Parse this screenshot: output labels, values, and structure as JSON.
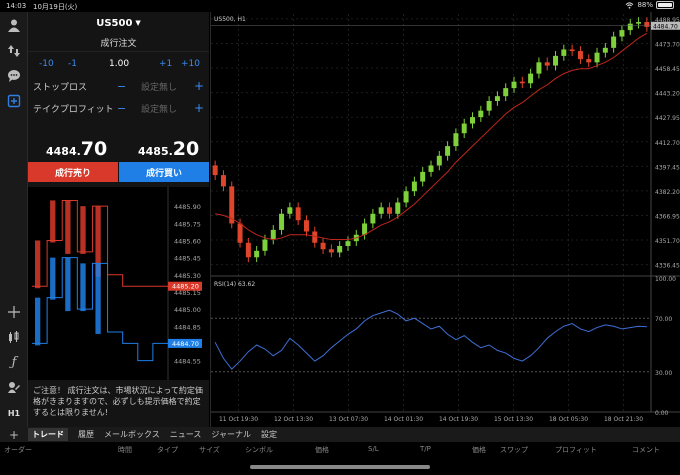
{
  "status": {
    "time": "14:03",
    "date": "10月19日(火)",
    "battery": "88%",
    "battery_level": 0.88
  },
  "toolbar": {
    "icons": [
      "account-icon",
      "transfer-icon",
      "chat-icon",
      "new-order-icon",
      "crosshair-icon",
      "indicator-icon",
      "function-icon",
      "draw-icon"
    ],
    "timeframe": "H1"
  },
  "order": {
    "symbol": "US500",
    "type": "成行注文",
    "lots": {
      "minus10": "-10",
      "minus1": "-1",
      "value": "1.00",
      "plus1": "+1",
      "plus10": "+10"
    },
    "stop_loss": {
      "label": "ストップロス",
      "value": "設定無し"
    },
    "take_profit": {
      "label": "テイクプロフィット",
      "value": "設定無し"
    },
    "sell_price": {
      "prefix": "4484.",
      "suffix": "70"
    },
    "buy_price": {
      "prefix": "4485.",
      "suffix": "20"
    },
    "sell_label": "成行売り",
    "buy_label": "成行買い"
  },
  "tick_chart": {
    "ticks": [
      "4485.90",
      "4485.75",
      "4485.60",
      "4485.45",
      "4485.30",
      "4485.15",
      "4485.00",
      "4484.85",
      "4484.70",
      "4484.55"
    ],
    "ask_label": "4485.20",
    "bid_label": "4484.70",
    "ask_color": "#d8392b",
    "bid_color": "#1f7fe6"
  },
  "notice": "ご注意！ 成行注文は、市場状況によって約定価格がきまりますので、必ずしも提示価格で約定するとは限りません!",
  "chart": {
    "title": "US500, H1",
    "price_ticks": [
      "4488.95",
      "4473.70",
      "4458.45",
      "4443.20",
      "4427.95",
      "4412.70",
      "4397.45",
      "4382.20",
      "4366.95",
      "4351.70",
      "4336.45"
    ],
    "current_label": "4484.70",
    "rsi_title": "RSI(14) 63.62",
    "rsi_ticks": [
      "100.00",
      "70.00",
      "30.00",
      "0.00"
    ],
    "time_ticks": [
      "11 Oct 19:30",
      "12 Oct 13:30",
      "13 Oct 07:30",
      "14 Oct 01:30",
      "14 Oct 19:30",
      "15 Oct 13:30",
      "18 Oct 05:30",
      "18 Oct 21:30"
    ]
  },
  "chart_data": [
    {
      "type": "candlestick",
      "title": "US500, H1",
      "y_range": [
        4330,
        4492
      ],
      "closes": [
        4392,
        4385,
        4362,
        4350,
        4341,
        4345,
        4352,
        4358,
        4368,
        4372,
        4364,
        4357,
        4350,
        4346,
        4344,
        4348,
        4351,
        4355,
        4362,
        4368,
        4372,
        4368,
        4375,
        4382,
        4388,
        4394,
        4398,
        4404,
        4410,
        4418,
        4424,
        4428,
        4432,
        4438,
        4441,
        4446,
        4450,
        4449,
        4455,
        4462,
        4460,
        4466,
        4470,
        4469,
        4464,
        4462,
        4468,
        4471,
        4478,
        4482,
        4486,
        4487,
        4484
      ],
      "ma_values": [
        4368,
        4367,
        4365,
        4362,
        4358,
        4355,
        4353,
        4352,
        4353,
        4355,
        4355,
        4355,
        4354,
        4353,
        4352,
        4352,
        4352,
        4353,
        4355,
        4358,
        4361,
        4363,
        4366,
        4370,
        4374,
        4379,
        4384,
        4389,
        4394,
        4400,
        4405,
        4410,
        4415,
        4420,
        4425,
        4430,
        4434,
        4437,
        4441,
        4445,
        4448,
        4452,
        4455,
        4457,
        4458,
        4458,
        4460,
        4462,
        4465,
        4469,
        4473,
        4477,
        4480
      ]
    },
    {
      "type": "line",
      "title": "RSI(14) 63.62",
      "y_range": [
        0,
        100
      ],
      "reference_lines": [
        70,
        30
      ],
      "values": [
        52,
        40,
        32,
        38,
        45,
        50,
        47,
        42,
        46,
        55,
        50,
        44,
        38,
        42,
        48,
        53,
        58,
        62,
        68,
        72,
        74,
        76,
        73,
        68,
        70,
        66,
        62,
        64,
        58,
        54,
        57,
        52,
        48,
        50,
        46,
        44,
        40,
        38,
        42,
        48,
        55,
        60,
        64,
        66,
        62,
        60,
        63,
        65,
        64,
        62,
        63,
        64,
        63.62
      ]
    },
    {
      "type": "line",
      "title": "tick",
      "y_range": [
        4484.45,
        4486.05
      ],
      "ask_values": [
        4485.2,
        4485.6,
        4485.95,
        4485.5,
        4485.9,
        4485.3,
        4485.2,
        4485.2,
        4485.2,
        4485.2
      ],
      "bid_values": [
        4484.7,
        4485.1,
        4485.45,
        4485.0,
        4485.4,
        4484.8,
        4484.7,
        4484.55,
        4484.7,
        4484.7
      ]
    }
  ],
  "bottom": {
    "tabs": [
      "トレード",
      "履歴",
      "メールボックス",
      "ニュース",
      "ジャーナル",
      "設定"
    ],
    "columns": [
      "オーダー",
      "時間",
      "タイプ",
      "サイズ",
      "シンボル",
      "価格",
      "S/L",
      "T/P",
      "価格",
      "スワップ",
      "プロフィット",
      "コメント"
    ]
  }
}
